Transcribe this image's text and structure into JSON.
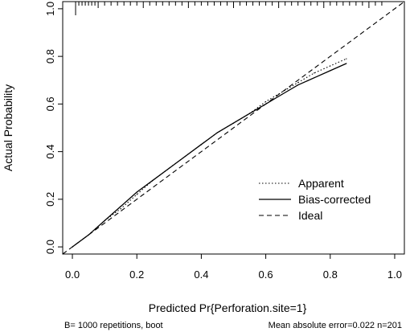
{
  "chart_data": {
    "type": "line",
    "xlabel": "Predicted Pr{Perforation.site=1}",
    "ylabel": "Actual Probability",
    "xlim": [
      -0.03,
      1.03
    ],
    "ylim": [
      -0.03,
      1.03
    ],
    "x_ticks": [
      "0.0",
      "0.2",
      "0.4",
      "0.6",
      "0.8",
      "1.0"
    ],
    "y_ticks": [
      "0.0",
      "0.2",
      "0.4",
      "0.6",
      "0.8",
      "1.0"
    ],
    "grid": false,
    "legend_position": "bottom-right",
    "series": [
      {
        "name": "Apparent",
        "line_style": "dotted",
        "x": [
          0.0,
          0.05,
          0.1,
          0.15,
          0.2,
          0.25,
          0.3,
          0.35,
          0.4,
          0.45,
          0.5,
          0.55,
          0.6,
          0.65,
          0.7,
          0.75,
          0.8,
          0.85
        ],
        "y": [
          0.0,
          0.05,
          0.11,
          0.16,
          0.22,
          0.28,
          0.33,
          0.38,
          0.43,
          0.48,
          0.52,
          0.56,
          0.61,
          0.65,
          0.69,
          0.73,
          0.76,
          0.79
        ]
      },
      {
        "name": "Bias-corrected",
        "line_style": "solid",
        "x": [
          0.0,
          0.05,
          0.1,
          0.15,
          0.2,
          0.25,
          0.3,
          0.35,
          0.4,
          0.45,
          0.5,
          0.55,
          0.6,
          0.65,
          0.7,
          0.75,
          0.8,
          0.85
        ],
        "y": [
          0.0,
          0.05,
          0.11,
          0.17,
          0.23,
          0.28,
          0.33,
          0.38,
          0.43,
          0.48,
          0.52,
          0.56,
          0.6,
          0.64,
          0.68,
          0.71,
          0.74,
          0.77
        ]
      },
      {
        "name": "Ideal",
        "line_style": "dashed",
        "x": [
          -0.03,
          1.03
        ],
        "y": [
          -0.03,
          1.03
        ]
      }
    ],
    "rug_x": [
      0.01,
      0.02,
      0.03,
      0.04,
      0.05,
      0.06,
      0.07,
      0.08,
      0.1,
      0.12,
      0.14,
      0.16,
      0.18,
      0.2,
      0.22,
      0.24,
      0.26,
      0.28,
      0.3,
      0.32,
      0.34,
      0.36,
      0.38,
      0.4,
      0.42,
      0.44,
      0.46,
      0.48,
      0.5,
      0.52,
      0.54,
      0.56,
      0.58,
      0.6,
      0.62,
      0.64,
      0.66,
      0.68,
      0.7,
      0.72,
      0.74,
      0.76,
      0.78,
      0.8,
      0.82,
      0.84,
      0.86,
      0.88,
      0.9,
      0.92,
      0.94,
      0.96
    ],
    "footer_left": "B= 1000 repetitions, boot",
    "footer_right": "Mean absolute error=0.022 n=201"
  }
}
